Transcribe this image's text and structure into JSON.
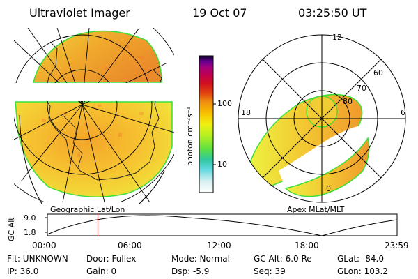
{
  "header": {
    "title": "Ultraviolet Imager",
    "date": "19 Oct 07",
    "time": "03:25:50 UT"
  },
  "left_panel": {
    "caption": "Geographic Lat/Lon"
  },
  "right_panel": {
    "caption": "Apex MLat/MLT",
    "lat_labels": [
      "80",
      "70",
      "60"
    ],
    "mlt_labels": {
      "top": "12",
      "left": "18",
      "right": "6",
      "bottom": "0"
    }
  },
  "colorbar": {
    "unit_label": "photon cm⁻²s⁻¹",
    "tick_labels": [
      "100",
      "10"
    ],
    "colors": [
      "#ffffff",
      "#d8f0f0",
      "#60d8e0",
      "#30c8a0",
      "#60e040",
      "#b8f020",
      "#f0f010",
      "#f8c000",
      "#f09010",
      "#e04010",
      "#d01020",
      "#c00050",
      "#a00080",
      "#600090",
      "#100020"
    ]
  },
  "timeline": {
    "axis_label": "GC Alt",
    "y_ticks": [
      "9.0",
      "1.8"
    ],
    "x_ticks": [
      "00:00",
      "06:00",
      "12:00",
      "18:00",
      "23:59"
    ],
    "current_time_fraction": 0.1443
  },
  "info": {
    "row1": {
      "flt": "Flt: UNKNOWN",
      "door": "Door: Fullex",
      "mode": "Mode: Normal",
      "gc_alt": "GC Alt: 6.0 Re",
      "glat": "GLat: -84.0"
    },
    "row2": {
      "ip": "IP: 36.0",
      "gain": "Gain:  0",
      "dsp": "Dsp:    -5.9",
      "seq": "Seq: 39",
      "glon": "GLon: 103.2"
    }
  }
}
